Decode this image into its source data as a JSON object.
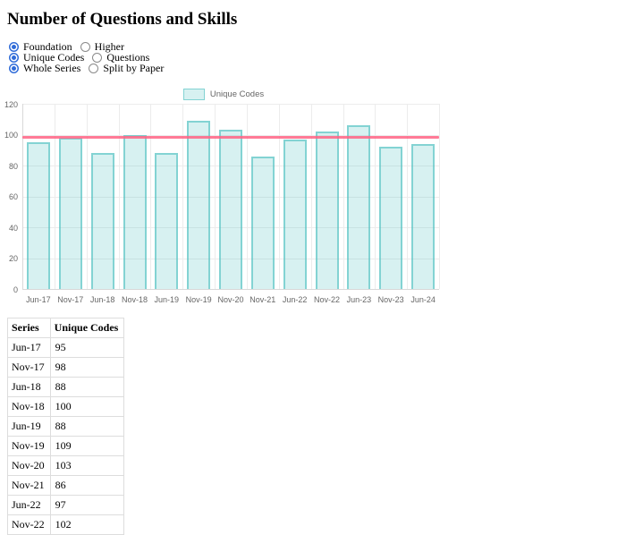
{
  "page": {
    "title": "Number of Questions and Skills"
  },
  "controls": {
    "groups": [
      {
        "name": "tier",
        "options": [
          {
            "label": "Foundation",
            "selected": true
          },
          {
            "label": "Higher",
            "selected": false
          }
        ]
      },
      {
        "name": "metric",
        "options": [
          {
            "label": "Unique Codes",
            "selected": true
          },
          {
            "label": "Questions",
            "selected": false
          }
        ]
      },
      {
        "name": "scope",
        "options": [
          {
            "label": "Whole Series",
            "selected": true
          },
          {
            "label": "Split by Paper",
            "selected": false
          }
        ]
      }
    ]
  },
  "chart_data": {
    "type": "bar",
    "title": "",
    "categories": [
      "Jun-17",
      "Nov-17",
      "Jun-18",
      "Nov-18",
      "Jun-19",
      "Nov-19",
      "Nov-20",
      "Nov-21",
      "Jun-22",
      "Nov-22",
      "Jun-23",
      "Nov-23",
      "Jun-24"
    ],
    "series": [
      {
        "name": "Unique Codes",
        "values": [
          95,
          98,
          88,
          100,
          88,
          109,
          103,
          86,
          97,
          102,
          106,
          92,
          94
        ]
      }
    ],
    "reference_line": {
      "value": 98,
      "color": "#ff6384"
    },
    "ylim": [
      0,
      120
    ],
    "ytick_step": 20,
    "grid": true,
    "legend_position": "top"
  },
  "colors": {
    "bar_fill": "rgba(75,192,192,0.22)",
    "bar_border": "rgba(75,192,192,0.6)",
    "reference_line": "#ff6384",
    "radio_accent": "#2f6bd8",
    "axis_text": "#666666",
    "grid": "#ececec",
    "axis_line": "#d8d8d8",
    "table_border": "#dddddd"
  },
  "table": {
    "headers": [
      "Series",
      "Unique Codes"
    ],
    "rows": [
      [
        "Jun-17",
        "95"
      ],
      [
        "Nov-17",
        "98"
      ],
      [
        "Jun-18",
        "88"
      ],
      [
        "Nov-18",
        "100"
      ],
      [
        "Jun-19",
        "88"
      ],
      [
        "Nov-19",
        "109"
      ],
      [
        "Nov-20",
        "103"
      ],
      [
        "Nov-21",
        "86"
      ],
      [
        "Jun-22",
        "97"
      ],
      [
        "Nov-22",
        "102"
      ]
    ]
  }
}
